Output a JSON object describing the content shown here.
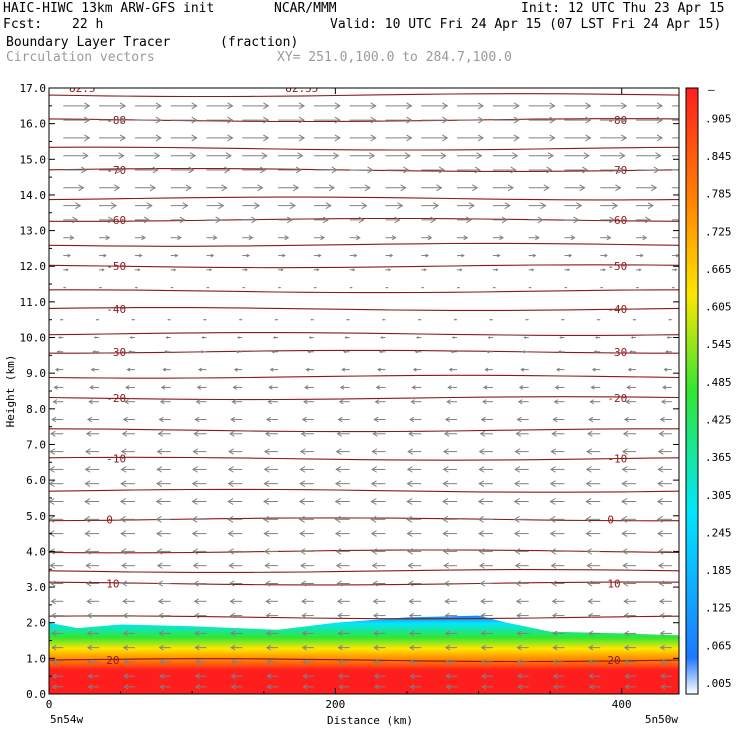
{
  "header": {
    "model": "HAIC-HIWC 13km ARW-GFS init",
    "org": "NCAR/MMM",
    "init": "Init: 12 UTC Thu 23 Apr 15",
    "fcst_label": "Fcst:",
    "fcst_value": "22 h",
    "valid": "Valid: 10 UTC Fri 24 Apr 15 (07 LST Fri 24 Apr 15)",
    "field": "Boundary Layer Tracer",
    "units": "(fraction)",
    "vectors": "Circulation vectors",
    "xy": "XY= 251.0,100.0 to 284.7,100.0"
  },
  "chart_data": {
    "type": "heatmap",
    "title": "Boundary Layer Tracer",
    "xlabel": "Distance (km)",
    "ylabel": "Height (km)",
    "xlim": [
      0,
      440
    ],
    "ylim": [
      0,
      17
    ],
    "x_ticks": [
      0,
      200,
      400
    ],
    "x_tick_labels": [
      "0",
      "200",
      "400"
    ],
    "y_ticks": [
      0,
      1,
      2,
      3,
      4,
      5,
      6,
      7,
      8,
      9,
      10,
      11,
      12,
      13,
      14,
      15,
      16,
      17
    ],
    "y_tick_labels": [
      "0.0",
      "1.0",
      "2.0",
      "3.0",
      "4.0",
      "5.0",
      "6.0",
      "7.0",
      "8.0",
      "9.0",
      "10.0",
      "11.0",
      "12.0",
      "13.0",
      "14.0",
      "15.0",
      "16.0",
      "17.0"
    ],
    "x_end_labels": {
      "left": "5n54w",
      "right": "5n50w"
    },
    "colorbar": {
      "min": 0.005,
      "max": 0.965,
      "labels": [
        ".005",
        ".065",
        ".125",
        ".185",
        ".245",
        ".305",
        ".365",
        ".425",
        ".485",
        ".545",
        ".605",
        ".665",
        ".725",
        ".785",
        ".845",
        ".905"
      ],
      "top_label": "–",
      "colors": {
        "white": "#ffffff",
        "blue": "#1e78ff",
        "cyan": "#00e6ff",
        "green": "#32e632",
        "yellow": "#ffe600",
        "orange": "#ff8c00",
        "red": "#ff1e1e"
      }
    },
    "tracer_top_km": [
      [
        0,
        2.0
      ],
      [
        20,
        1.85
      ],
      [
        50,
        1.95
      ],
      [
        100,
        1.9
      ],
      [
        160,
        1.8
      ],
      [
        200,
        2.0
      ],
      [
        250,
        2.15
      ],
      [
        300,
        2.2
      ],
      [
        320,
        2.0
      ],
      [
        350,
        1.75
      ],
      [
        400,
        1.7
      ],
      [
        440,
        1.65
      ]
    ],
    "contours": {
      "name": "temperature (C)",
      "line_color": "#8b1a1a",
      "labeled_levels": [
        {
          "value": 20,
          "label": "20",
          "height_km": 0.95
        },
        {
          "value": 10,
          "label": "10",
          "height_km": 3.1
        },
        {
          "value": 0,
          "label": "0",
          "height_km": 4.9
        },
        {
          "value": -10,
          "label": "-10",
          "height_km": 6.6
        },
        {
          "value": -20,
          "label": "-20",
          "height_km": 8.3
        },
        {
          "value": -30,
          "label": "-30",
          "height_km": 9.6
        },
        {
          "value": -40,
          "label": "-40",
          "height_km": 10.8
        },
        {
          "value": -50,
          "label": "-50",
          "height_km": 12.0
        },
        {
          "value": -60,
          "label": "-60",
          "height_km": 13.3
        },
        {
          "value": -70,
          "label": "-70",
          "height_km": 14.7
        },
        {
          "value": -80,
          "label": "-80",
          "height_km": 16.1
        }
      ],
      "top_labels": [
        "82.5",
        "82.55"
      ],
      "line_heights_km": [
        0.95,
        2.15,
        3.1,
        3.45,
        4.0,
        4.9,
        5.7,
        6.6,
        7.4,
        8.3,
        8.9,
        9.6,
        10.1,
        10.8,
        11.3,
        12.0,
        12.6,
        13.3,
        13.9,
        14.7,
        15.3,
        16.1,
        16.8
      ]
    },
    "wind_vectors": {
      "color": "#808080",
      "rows_km": [
        0.2,
        0.5,
        0.9,
        1.3,
        1.7,
        2.2,
        2.6,
        3.1,
        3.6,
        4.0,
        4.5,
        4.9,
        5.4,
        5.9,
        6.3,
        6.8,
        7.3,
        7.7,
        8.2,
        8.6,
        9.1,
        9.6,
        10.0,
        10.5,
        11.0,
        11.4,
        11.9,
        12.3,
        12.8,
        13.3,
        13.7,
        14.2,
        14.7,
        15.1,
        15.6,
        16.1,
        16.5
      ],
      "u_profile": [
        [
          0.0,
          -0.4
        ],
        [
          2.5,
          -0.45
        ],
        [
          5.0,
          -0.55
        ],
        [
          7.0,
          -0.5
        ],
        [
          9.0,
          -0.3
        ],
        [
          10.5,
          -0.1
        ],
        [
          11.5,
          0.1
        ],
        [
          12.5,
          0.3
        ],
        [
          13.5,
          0.6
        ],
        [
          14.5,
          0.85
        ],
        [
          15.5,
          1.0
        ],
        [
          17.0,
          1.0
        ]
      ]
    }
  }
}
